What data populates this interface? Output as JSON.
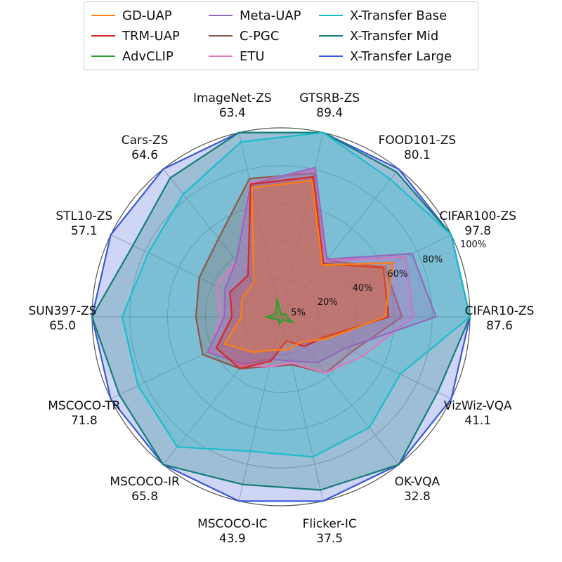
{
  "chart_data": {
    "type": "radar",
    "rlabels": [
      "5%",
      "20%",
      "40%",
      "60%",
      "80%",
      "100%"
    ],
    "rticks": [
      5,
      20,
      40,
      60,
      80,
      100
    ],
    "rlim": [
      0,
      100
    ],
    "legend_position": "top",
    "grid": true,
    "categories": [
      {
        "name": "GTSRB-ZS",
        "value": "89.4"
      },
      {
        "name": "FOOD101-ZS",
        "value": "80.1"
      },
      {
        "name": "CIFAR100-ZS",
        "value": "97.8"
      },
      {
        "name": "CIFAR10-ZS",
        "value": "87.6"
      },
      {
        "name": "VizWiz-VQA",
        "value": "41.1"
      },
      {
        "name": "OK-VQA",
        "value": "32.8"
      },
      {
        "name": "Flicker-IC",
        "value": "37.5"
      },
      {
        "name": "MSCOCO-IC",
        "value": "43.9"
      },
      {
        "name": "MSCOCO-IR",
        "value": "65.8"
      },
      {
        "name": "MSCOCO-TR",
        "value": "71.8"
      },
      {
        "name": "SUN397-ZS",
        "value": "65.0"
      },
      {
        "name": "STL10-ZS",
        "value": "57.1"
      },
      {
        "name": "Cars-ZS",
        "value": "64.6"
      },
      {
        "name": "ImageNet-ZS",
        "value": "63.4"
      }
    ],
    "series": [
      {
        "name": "X-Transfer Large",
        "color": "#3a58d8",
        "values": [
          100,
          100,
          100,
          100,
          100,
          100,
          100,
          100,
          100,
          100,
          100,
          100,
          100,
          100
        ]
      },
      {
        "name": "X-Transfer Mid",
        "color": "#117d78",
        "values": [
          100,
          98,
          100,
          100,
          92,
          100,
          94,
          91,
          100,
          95,
          100,
          87,
          94,
          100
        ]
      },
      {
        "name": "X-Transfer Base",
        "color": "#17becf",
        "values": [
          100,
          93,
          100,
          100,
          70,
          75,
          76,
          73,
          88,
          84,
          84,
          78,
          83,
          95
        ]
      },
      {
        "name": "C-PGC",
        "color": "#8c564b",
        "values": [
          78,
          38,
          61,
          64,
          42,
          38,
          26,
          27,
          35,
          46,
          45,
          48,
          53,
          75
        ]
      },
      {
        "name": "ETU",
        "color": "#e377c2",
        "values": [
          80,
          38,
          73,
          70,
          48,
          38,
          25,
          27,
          33,
          42,
          32,
          38,
          38,
          73
        ]
      },
      {
        "name": "Meta-UAP",
        "color": "#9467bd",
        "values": [
          81,
          39,
          77,
          82,
          38,
          31,
          24,
          23,
          32,
          43,
          30,
          33,
          38,
          72
        ]
      },
      {
        "name": "TRM-UAP",
        "color": "#d62728",
        "values": [
          76,
          36,
          60,
          57,
          25,
          20,
          13,
          24,
          35,
          38,
          26,
          30,
          28,
          72
        ]
      },
      {
        "name": "GD-UAP",
        "color": "#ff7f0e",
        "values": [
          74,
          35,
          66,
          55,
          27,
          17,
          18,
          18,
          24,
          33,
          21,
          23,
          23,
          70
        ]
      },
      {
        "name": "AdvCLIP",
        "color": "#2ca02c",
        "values": [
          1,
          2,
          3,
          3,
          7,
          2,
          2,
          4,
          2,
          3,
          8,
          3,
          4,
          10
        ]
      }
    ],
    "legend": [
      {
        "name": "GD-UAP",
        "color": "#ff7f0e"
      },
      {
        "name": "TRM-UAP",
        "color": "#d62728"
      },
      {
        "name": "AdvCLIP",
        "color": "#2ca02c"
      },
      {
        "name": "Meta-UAP",
        "color": "#9467bd"
      },
      {
        "name": "C-PGC",
        "color": "#8c564b"
      },
      {
        "name": "ETU",
        "color": "#e377c2"
      },
      {
        "name": "X-Transfer Base",
        "color": "#17becf"
      },
      {
        "name": "X-Transfer Mid",
        "color": "#117d78"
      },
      {
        "name": "X-Transfer Large",
        "color": "#3a58d8"
      }
    ]
  }
}
